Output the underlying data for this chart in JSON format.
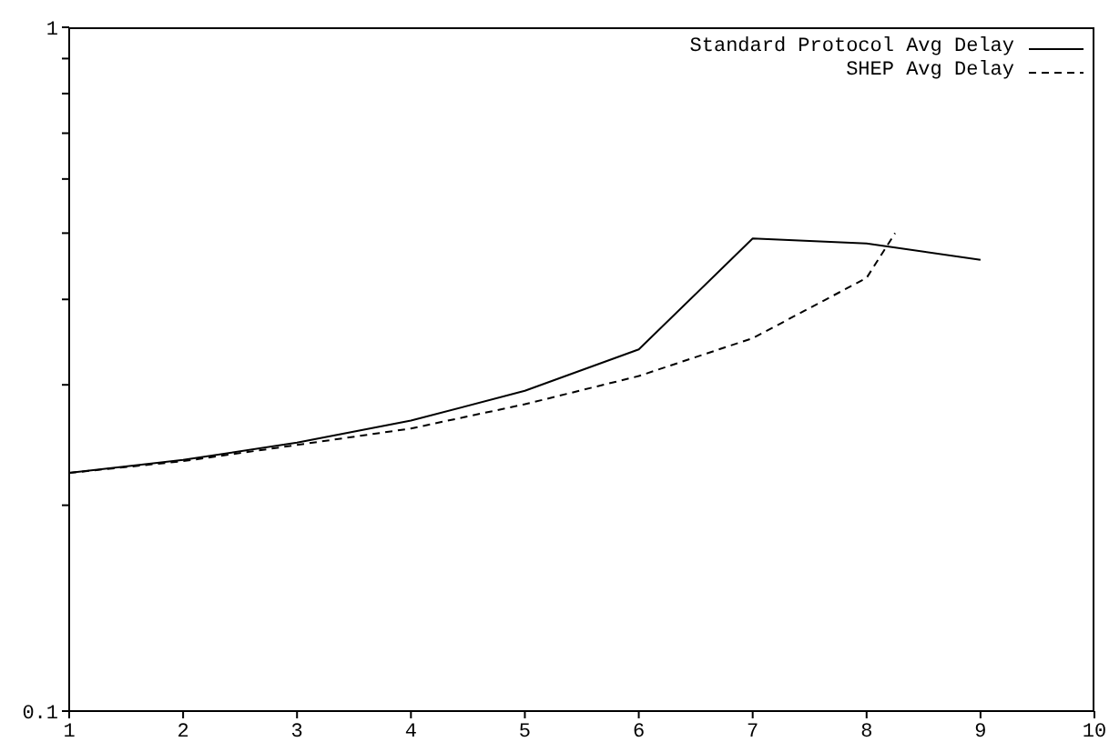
{
  "chart_data": {
    "type": "line",
    "log": "y",
    "xlim": [
      1,
      10
    ],
    "xticks": [
      1,
      2,
      3,
      4,
      5,
      6,
      7,
      8,
      9,
      10
    ],
    "ylim": [
      0.1,
      1
    ],
    "yticks": [
      0.1,
      {
        "value": 0.2,
        "label": null
      },
      {
        "value": 0.3,
        "label": null
      },
      {
        "value": 0.4,
        "label": null
      },
      {
        "value": 0.5,
        "label": null
      },
      {
        "value": 0.6,
        "label": null
      },
      {
        "value": 0.7,
        "label": null
      },
      {
        "value": 0.8,
        "label": null
      },
      {
        "value": 0.9,
        "label": null
      },
      1
    ],
    "legend": "top right",
    "grid": false,
    "marker": "none",
    "series": [
      {
        "name": "Standard Protocol Avg Delay",
        "color": "#000000",
        "line_style": "solid",
        "x": [
          1,
          2,
          3,
          4,
          5,
          6,
          7,
          8,
          9
        ],
        "values": [
          0.223,
          0.233,
          0.247,
          0.266,
          0.294,
          0.338,
          0.491,
          0.483,
          0.457
        ]
      },
      {
        "name": "SHEP Avg Delay",
        "color": "#000000",
        "line_style": "dashed",
        "x": [
          1,
          2,
          3,
          4,
          5,
          6,
          7,
          8,
          8.25
        ],
        "values": [
          0.223,
          0.232,
          0.245,
          0.259,
          0.281,
          0.309,
          0.351,
          0.43,
          0.5
        ]
      }
    ]
  }
}
